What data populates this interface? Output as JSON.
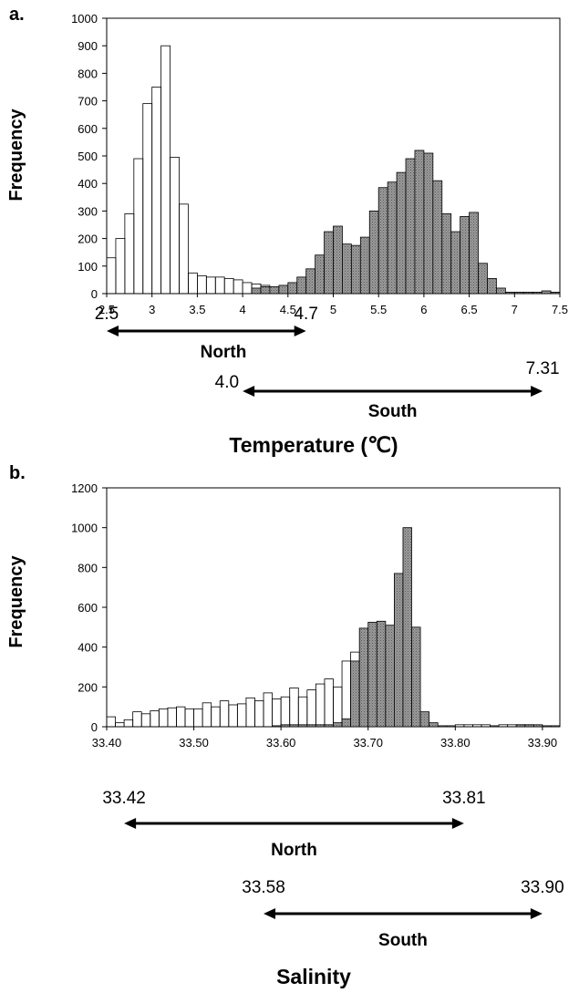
{
  "chart_data": [
    {
      "panel": "a.",
      "type": "bar",
      "ylabel": "Frequency",
      "xlabel": "Temperature (℃)",
      "ylim": [
        0,
        1000
      ],
      "yticks": [
        "0",
        "100",
        "200",
        "300",
        "400",
        "500",
        "600",
        "700",
        "800",
        "900",
        "1000"
      ],
      "xlim": [
        2.5,
        7.5
      ],
      "xticks": [
        "2.5",
        "3",
        "3.5",
        "4",
        "4.5",
        "5",
        "5.5",
        "6",
        "6.5",
        "7",
        "7.5"
      ],
      "bin_start": 2.5,
      "bin_width": 0.1,
      "series": [
        {
          "fill": "#ffffff",
          "values": [
            130,
            200,
            290,
            490,
            690,
            750,
            900,
            495,
            325,
            75,
            65,
            60,
            60,
            55,
            50,
            40,
            35,
            30,
            20,
            15,
            10,
            10,
            5,
            5,
            5,
            5,
            5,
            5,
            5,
            5,
            5,
            5,
            5,
            5,
            5,
            5,
            5,
            5,
            5,
            5,
            5,
            5,
            5,
            5,
            5,
            5,
            5,
            5,
            5,
            5
          ]
        },
        {
          "fill": "#8c8c8c",
          "values": [
            0,
            0,
            0,
            0,
            0,
            0,
            0,
            0,
            0,
            0,
            0,
            0,
            0,
            0,
            0,
            0,
            20,
            25,
            25,
            30,
            40,
            60,
            90,
            140,
            225,
            245,
            180,
            175,
            205,
            300,
            385,
            405,
            440,
            490,
            520,
            510,
            410,
            290,
            225,
            280,
            295,
            110,
            55,
            20,
            5,
            5,
            5,
            5,
            10,
            5
          ]
        }
      ],
      "ranges": [
        {
          "name": "North",
          "from_label": "2.5",
          "to_label": "4.7",
          "from": 2.5,
          "to": 4.7
        },
        {
          "name": "South",
          "from_label": "4.0",
          "to_label": "7.31",
          "from": 4.0,
          "to": 7.31
        }
      ]
    },
    {
      "panel": "b.",
      "type": "bar",
      "ylabel": "Frequency",
      "xlabel": "Salinity",
      "ylim": [
        0,
        1200
      ],
      "yticks": [
        "0",
        "200",
        "400",
        "600",
        "800",
        "1000",
        "1200"
      ],
      "xlim": [
        33.4,
        33.92
      ],
      "xticks": [
        "33.40",
        "33.50",
        "33.60",
        "33.70",
        "33.80",
        "33.90"
      ],
      "bin_start": 33.4,
      "bin_width": 0.01,
      "series": [
        {
          "fill": "#ffffff",
          "values": [
            50,
            20,
            35,
            75,
            65,
            80,
            90,
            95,
            100,
            90,
            90,
            120,
            100,
            130,
            110,
            115,
            145,
            130,
            170,
            140,
            150,
            195,
            150,
            185,
            215,
            240,
            200,
            330,
            375,
            150,
            150,
            150,
            140,
            120,
            40,
            20,
            10,
            5,
            5,
            5,
            10,
            10,
            10,
            10,
            5,
            10,
            10,
            10,
            10,
            5,
            5,
            5
          ]
        },
        {
          "fill": "#8c8c8c",
          "values": [
            0,
            0,
            0,
            0,
            0,
            0,
            0,
            0,
            0,
            0,
            0,
            0,
            0,
            0,
            0,
            0,
            0,
            0,
            0,
            5,
            10,
            10,
            10,
            10,
            10,
            10,
            20,
            40,
            330,
            495,
            525,
            530,
            510,
            770,
            1000,
            500,
            75,
            20,
            0,
            0,
            0,
            0,
            0,
            0,
            0,
            0,
            0,
            10,
            10,
            10,
            5,
            0
          ]
        }
      ],
      "ranges": [
        {
          "name": "North",
          "from_label": "33.42",
          "to_label": "33.81",
          "from": 33.42,
          "to": 33.81
        },
        {
          "name": "South",
          "from_label": "33.58",
          "to_label": "33.90",
          "from": 33.58,
          "to": 33.9
        }
      ]
    }
  ]
}
